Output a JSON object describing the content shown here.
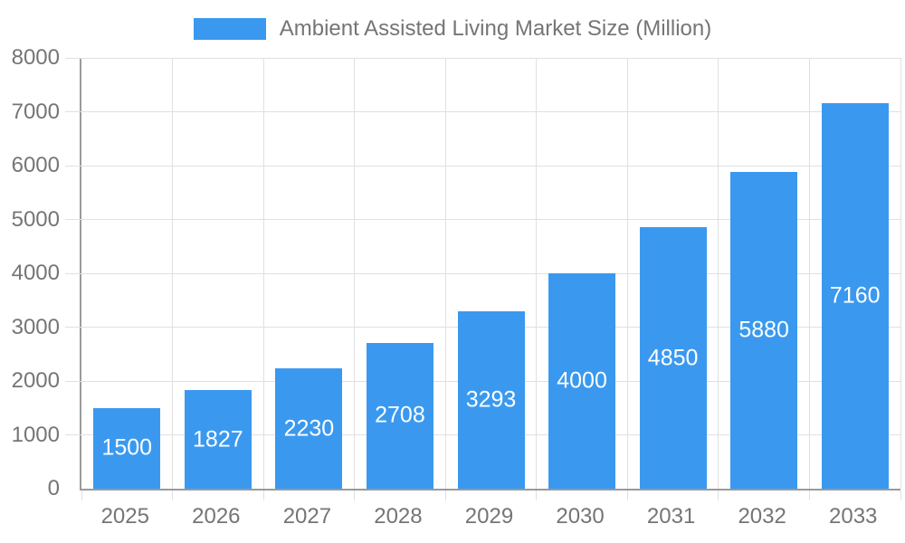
{
  "chart_data": {
    "type": "bar",
    "title": "Ambient Assisted Living Market Size (Million)",
    "categories": [
      "2025",
      "2026",
      "2027",
      "2028",
      "2029",
      "2030",
      "2031",
      "2032",
      "2033"
    ],
    "values": [
      1500,
      1827,
      2230,
      2708,
      3293,
      4000,
      4850,
      5880,
      7160
    ],
    "series": [
      {
        "name": "Ambient Assisted Living Market Size (Million)",
        "values": [
          1500,
          1827,
          2230,
          2708,
          3293,
          4000,
          4850,
          5880,
          7160
        ]
      }
    ],
    "xlabel": "",
    "ylabel": "",
    "ylim": [
      0,
      8000
    ],
    "y_ticks": [
      0,
      1000,
      2000,
      3000,
      4000,
      5000,
      6000,
      7000,
      8000
    ],
    "grid": true,
    "legend_position": "top-center",
    "value_labels": "inside-center-white",
    "colors": {
      "bar": "#3a99ef",
      "value_text": "#ffffff",
      "axis_text": "#757575",
      "legend_text": "#757575",
      "grid_line": "#e0e0e0",
      "axis_line": "#9a9a9a",
      "background": "#ffffff"
    }
  }
}
